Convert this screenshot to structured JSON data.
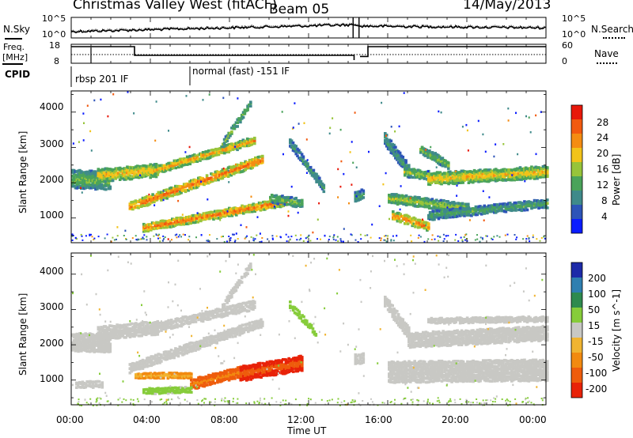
{
  "header": {
    "station_title": "Christmas Valley West (fitACF)",
    "beam": "Beam 05",
    "date": "14/May/2013"
  },
  "sky_panel": {
    "left_label": "N.Sky",
    "right_label": "N.Search",
    "left_ticks": [
      "10^5",
      "10^0"
    ],
    "right_ticks": [
      "10^5",
      "10^0"
    ]
  },
  "freq_panel": {
    "left_label_1": "Freq.",
    "left_label_2": "[MHz]",
    "right_label": "Nave",
    "left_ticks": [
      "18",
      "8"
    ],
    "right_ticks": [
      "60",
      "0"
    ]
  },
  "cpid": {
    "label": "CPID",
    "modes": [
      {
        "name": "rbsp 201 IF",
        "start_hour": 0
      },
      {
        "name": "normal (fast) -151 IF",
        "start_hour": 6
      }
    ]
  },
  "x_axis": {
    "label": "Time UT",
    "ticks": [
      "00:00",
      "04:00",
      "08:00",
      "12:00",
      "16:00",
      "20:00",
      "00:00"
    ]
  },
  "colors": {
    "power_scale": [
      "#0a1cff",
      "#2d54b8",
      "#3f8a8a",
      "#4aa35a",
      "#97c43a",
      "#f2c319",
      "#f48c12",
      "#f25a0f",
      "#e8180a"
    ],
    "velocity_scale": [
      "#1d2aa8",
      "#2f7fb0",
      "#2e8a4e",
      "#86cc3a",
      "#c8c8c4",
      "#f0b431",
      "#f28a10",
      "#ee5c0c",
      "#e82208"
    ]
  },
  "chart_data": [
    {
      "type": "heatmap",
      "title": "",
      "xlabel": "",
      "ylabel": "Slant Range [km]",
      "xlim": [
        0,
        24
      ],
      "ylim": [
        300,
        4600
      ],
      "yticks": [
        1000,
        2000,
        3000,
        4000
      ],
      "colorbar": {
        "label": "Power [dB]",
        "ticks": [
          "4",
          "8",
          "12",
          "16",
          "20",
          "24",
          "28"
        ],
        "range": [
          0,
          30
        ]
      },
      "bands": [
        {
          "t0": 0.0,
          "t1": 1.9,
          "r0": 2050,
          "r1": 2000,
          "width": 520,
          "value": 14
        },
        {
          "t0": 1.3,
          "t1": 4.3,
          "r0": 2150,
          "r1": 2300,
          "width": 380,
          "value": 20
        },
        {
          "t0": 4.2,
          "t1": 9.2,
          "r0": 2300,
          "r1": 3150,
          "width": 230,
          "value": 22
        },
        {
          "t0": 2.9,
          "t1": 9.6,
          "r0": 1250,
          "r1": 2600,
          "width": 260,
          "value": 25
        },
        {
          "t0": 3.6,
          "t1": 10.8,
          "r0": 650,
          "r1": 1400,
          "width": 230,
          "value": 25
        },
        {
          "t0": 10.0,
          "t1": 11.6,
          "r0": 1500,
          "r1": 1350,
          "width": 250,
          "value": 14
        },
        {
          "t0": 7.6,
          "t1": 9.0,
          "r0": 3050,
          "r1": 4200,
          "width": 200,
          "value": 14
        },
        {
          "t0": 11.0,
          "t1": 12.7,
          "r0": 3100,
          "r1": 1800,
          "width": 230,
          "value": 11
        },
        {
          "t0": 15.8,
          "t1": 17.0,
          "r0": 3200,
          "r1": 2300,
          "width": 350,
          "value": 11
        },
        {
          "t0": 16.8,
          "t1": 18.0,
          "r0": 2250,
          "r1": 2150,
          "width": 260,
          "value": 16
        },
        {
          "t0": 18.0,
          "t1": 24.0,
          "r0": 2050,
          "r1": 2250,
          "width": 350,
          "value": 20
        },
        {
          "t0": 17.6,
          "t1": 19.0,
          "r0": 2900,
          "r1": 2450,
          "width": 250,
          "value": 14
        },
        {
          "t0": 16.0,
          "t1": 20.0,
          "r0": 1500,
          "r1": 1200,
          "width": 280,
          "value": 16
        },
        {
          "t0": 16.2,
          "t1": 18.0,
          "r0": 1000,
          "r1": 700,
          "width": 260,
          "value": 24
        },
        {
          "t0": 18.0,
          "t1": 24.0,
          "r0": 1000,
          "r1": 1350,
          "width": 250,
          "value": 12
        },
        {
          "t0": 14.3,
          "t1": 14.7,
          "r0": 1550,
          "r1": 1600,
          "width": 300,
          "value": 12
        }
      ]
    },
    {
      "type": "heatmap",
      "title": "",
      "xlabel": "Time UT",
      "ylabel": "Slant Range [km]",
      "xlim": [
        0,
        24
      ],
      "ylim": [
        300,
        4600
      ],
      "yticks": [
        1000,
        2000,
        3000,
        4000
      ],
      "colorbar": {
        "label": "Velocity [m s^-1]",
        "ticks": [
          "200",
          "100",
          "50",
          "15",
          "-15",
          "-50",
          "-100",
          "-200"
        ],
        "range": [
          -250,
          250
        ]
      },
      "bands": [
        {
          "t0": 0.0,
          "t1": 1.9,
          "r0": 2050,
          "r1": 2000,
          "width": 520,
          "value": 0
        },
        {
          "t0": 1.3,
          "t1": 4.3,
          "r0": 2300,
          "r1": 2450,
          "width": 380,
          "value": 0
        },
        {
          "t0": 4.2,
          "t1": 9.2,
          "r0": 2450,
          "r1": 3100,
          "width": 260,
          "value": 0
        },
        {
          "t0": 2.9,
          "t1": 9.6,
          "r0": 1300,
          "r1": 2600,
          "width": 260,
          "value": 0
        },
        {
          "t0": 3.2,
          "t1": 6.0,
          "r0": 1100,
          "r1": 1100,
          "width": 150,
          "value": -40
        },
        {
          "t0": 6.0,
          "t1": 8.5,
          "r0": 850,
          "r1": 1200,
          "width": 300,
          "value": -90
        },
        {
          "t0": 8.5,
          "t1": 11.6,
          "r0": 1150,
          "r1": 1450,
          "width": 420,
          "value": -170
        },
        {
          "t0": 3.6,
          "t1": 6.0,
          "r0": 650,
          "r1": 700,
          "width": 160,
          "value": 30
        },
        {
          "t0": 7.6,
          "t1": 9.0,
          "r0": 3050,
          "r1": 4200,
          "width": 200,
          "value": 0
        },
        {
          "t0": 11.0,
          "t1": 12.3,
          "r0": 3100,
          "r1": 2300,
          "width": 180,
          "value": 40
        },
        {
          "t0": 15.8,
          "t1": 17.0,
          "r0": 3200,
          "r1": 2300,
          "width": 350,
          "value": 0
        },
        {
          "t0": 17.0,
          "t1": 24.0,
          "r0": 2100,
          "r1": 2300,
          "width": 420,
          "value": 0
        },
        {
          "t0": 18.0,
          "t1": 24.0,
          "r0": 2650,
          "r1": 2700,
          "width": 150,
          "value": 0
        },
        {
          "t0": 16.0,
          "t1": 24.0,
          "r0": 1200,
          "r1": 1250,
          "width": 600,
          "value": 0
        },
        {
          "t0": 0.2,
          "t1": 1.5,
          "r0": 850,
          "r1": 850,
          "width": 180,
          "value": 0
        },
        {
          "t0": 14.3,
          "t1": 14.7,
          "r0": 1550,
          "r1": 1600,
          "width": 300,
          "value": 0
        }
      ]
    }
  ]
}
